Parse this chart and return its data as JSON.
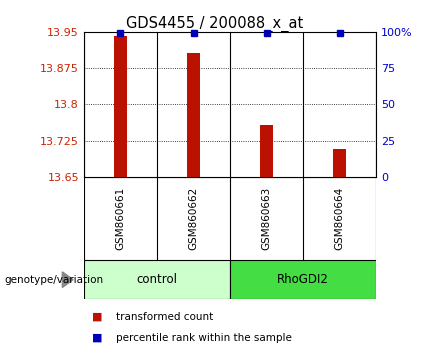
{
  "title": "GDS4455 / 200088_x_at",
  "samples": [
    "GSM860661",
    "GSM860662",
    "GSM860663",
    "GSM860664"
  ],
  "transformed_counts": [
    13.942,
    13.907,
    13.757,
    13.708
  ],
  "percentile_ranks": [
    99,
    99,
    99,
    99
  ],
  "y_min": 13.65,
  "y_max": 13.95,
  "y_ticks": [
    13.65,
    13.725,
    13.8,
    13.875,
    13.95
  ],
  "y_tick_labels": [
    "13.65",
    "13.725",
    "13.8",
    "13.875",
    "13.95"
  ],
  "right_y_ticks": [
    0,
    25,
    50,
    75,
    100
  ],
  "right_y_labels": [
    "0",
    "25",
    "50",
    "75",
    "100%"
  ],
  "groups_info": [
    {
      "label": "control",
      "start": 0,
      "end": 2,
      "color": "#ccffcc"
    },
    {
      "label": "RhoGDI2",
      "start": 2,
      "end": 4,
      "color": "#44dd44"
    }
  ],
  "bar_color": "#bb1100",
  "dot_color": "#0000bb",
  "background_color": "#ffffff",
  "sample_area_color": "#cccccc",
  "group_label_text": "genotype/variation",
  "legend_items": [
    {
      "color": "#bb1100",
      "label": "transformed count"
    },
    {
      "color": "#0000bb",
      "label": "percentile rank within the sample"
    }
  ]
}
